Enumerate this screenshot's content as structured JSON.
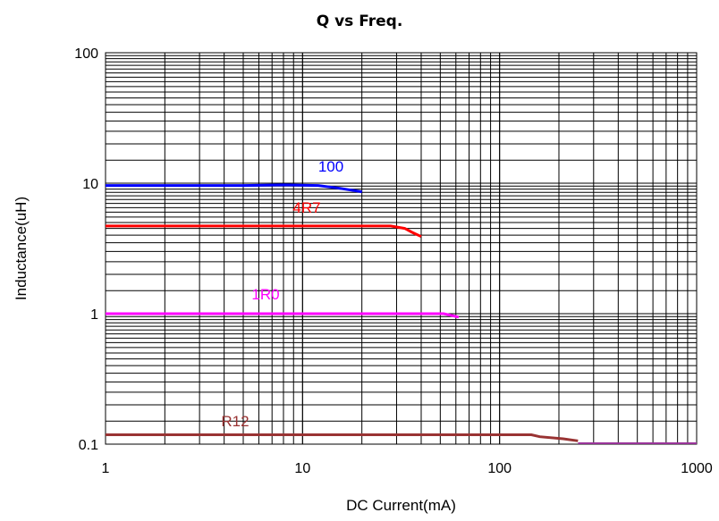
{
  "chart_data": {
    "type": "line",
    "title": "Q vs Freq.",
    "xlabel": "DC Current(mA)",
    "ylabel": "Inductance(uH)",
    "x_scale": "log",
    "y_scale": "log",
    "xlim": [
      1,
      1000
    ],
    "ylim": [
      0.1,
      100
    ],
    "grid": true,
    "x_ticks": [
      "1",
      "10",
      "100",
      "1000"
    ],
    "y_ticks": [
      "0.1",
      "1",
      "10",
      "100"
    ],
    "series": [
      {
        "name": "100",
        "color": "#0000ff",
        "points": [
          [
            1,
            9.6
          ],
          [
            5,
            9.6
          ],
          [
            8,
            9.7
          ],
          [
            12,
            9.6
          ],
          [
            15,
            9.2
          ],
          [
            20,
            8.6
          ]
        ]
      },
      {
        "name": "4R7",
        "color": "#ff0000",
        "points": [
          [
            1,
            4.7
          ],
          [
            28,
            4.7
          ],
          [
            33,
            4.5
          ],
          [
            36,
            4.2
          ],
          [
            40,
            3.9
          ]
        ]
      },
      {
        "name": "1R0",
        "color": "#ff00ff",
        "points": [
          [
            1,
            1.0
          ],
          [
            52,
            1.0
          ],
          [
            57,
            0.97
          ],
          [
            62,
            0.94
          ]
        ]
      },
      {
        "name": "R12",
        "color": "#993333",
        "points": [
          [
            1,
            0.118
          ],
          [
            145,
            0.118
          ],
          [
            160,
            0.114
          ],
          [
            210,
            0.11
          ],
          [
            250,
            0.106
          ]
        ]
      }
    ]
  }
}
